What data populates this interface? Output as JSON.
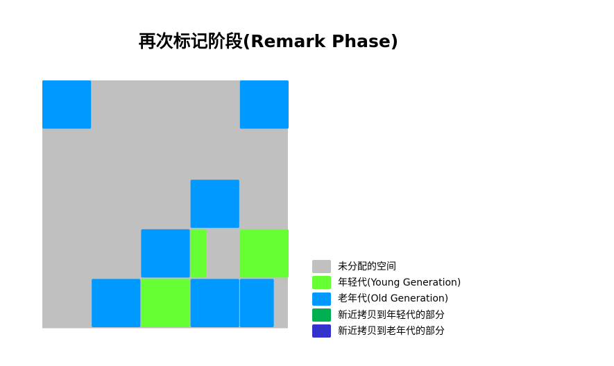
{
  "title": "再次标记阶段(Remark Phase)",
  "colors": {
    "unallocated": "#c0c0c0",
    "young": "#66ff33",
    "old": "#0099ff",
    "copied_young": "#00b050",
    "copied_old": "#3333cc"
  },
  "legend": [
    {
      "label": "未分配的空间",
      "color": "#c0c0c0"
    },
    {
      "label": "年轻代(Young Generation)",
      "color": "#66ff33"
    },
    {
      "label": "老年代(Old Generation)",
      "color": "#0099ff"
    },
    {
      "label": "新近拷贝到年轻代的部分",
      "color": "#00b050"
    },
    {
      "label": "新近拷贝到老年代的部分",
      "color": "#3333cc"
    }
  ],
  "grid": {
    "rows": 5,
    "cols": 5,
    "regions": [
      {
        "row": 0,
        "col": 0,
        "type": "old"
      },
      {
        "row": 0,
        "col": 4,
        "type": "old"
      },
      {
        "row": 2,
        "col": 3,
        "type": "old"
      },
      {
        "row": 3,
        "col": 2,
        "type": "old"
      },
      {
        "row": 3,
        "col": 3,
        "type": "young",
        "fraction": 0.33
      },
      {
        "row": 3,
        "col": 4,
        "type": "young"
      },
      {
        "row": 4,
        "col": 1,
        "type": "old"
      },
      {
        "row": 4,
        "col": 2,
        "type": "young"
      },
      {
        "row": 4,
        "col": 3,
        "type": "old"
      },
      {
        "row": 4,
        "col": 4,
        "type": "old",
        "fraction": 0.7
      }
    ]
  }
}
